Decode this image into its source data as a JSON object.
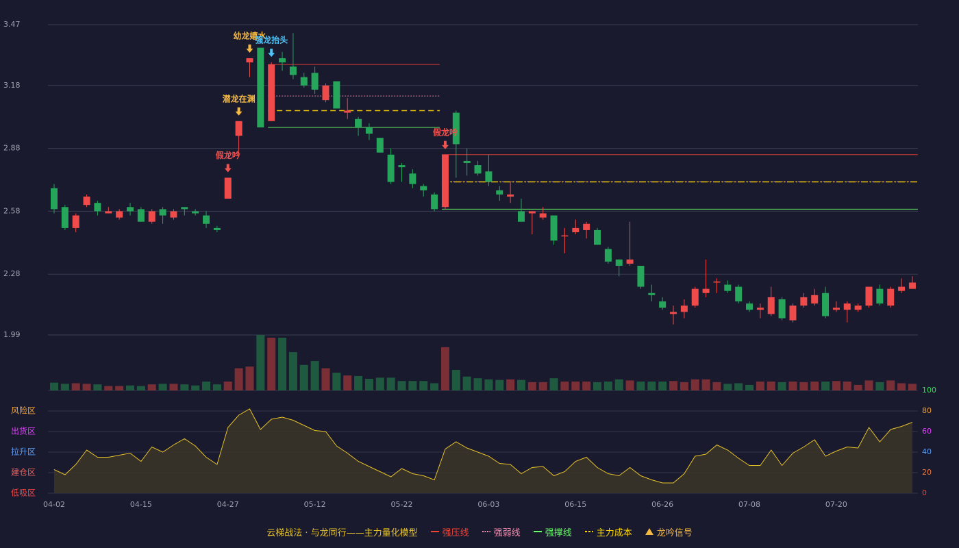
{
  "chart_data": {
    "type": "candlestick",
    "categories": [
      "04-02",
      null,
      null,
      null,
      null,
      null,
      null,
      null,
      "04-15",
      null,
      null,
      null,
      null,
      null,
      null,
      null,
      "04-27",
      null,
      null,
      null,
      null,
      null,
      null,
      null,
      "05-12",
      null,
      null,
      null,
      null,
      null,
      null,
      null,
      "05-22",
      null,
      null,
      null,
      null,
      null,
      null,
      null,
      "06-03",
      null,
      null,
      null,
      null,
      null,
      null,
      null,
      "06-15",
      null,
      null,
      null,
      null,
      null,
      null,
      null,
      "06-26",
      null,
      null,
      null,
      null,
      null,
      null,
      null,
      "07-08",
      null,
      null,
      null,
      null,
      null,
      null,
      null,
      "07-20",
      null,
      null,
      null,
      null,
      null,
      null,
      null
    ],
    "open": [
      2.69,
      2.6,
      2.5,
      2.61,
      2.62,
      2.57,
      2.55,
      2.6,
      2.59,
      2.53,
      2.59,
      2.55,
      2.6,
      2.58,
      2.56,
      2.5,
      2.64,
      2.94,
      3.29,
      3.36,
      3.01,
      3.31,
      3.27,
      3.22,
      3.24,
      3.11,
      3.2,
      3.05,
      3.02,
      2.98,
      2.93,
      2.85,
      2.8,
      2.76,
      2.7,
      2.66,
      2.6,
      3.05,
      2.82,
      2.8,
      2.77,
      2.68,
      2.65,
      2.58,
      2.57,
      2.55,
      2.56,
      2.46,
      2.48,
      2.49,
      2.49,
      2.4,
      2.35,
      2.33,
      2.32,
      2.19,
      2.15,
      2.09,
      2.1,
      2.13,
      2.19,
      2.24,
      2.23,
      2.22,
      2.14,
      2.11,
      2.09,
      2.16,
      2.06,
      2.13,
      2.14,
      2.19,
      2.11,
      2.11,
      2.11,
      2.13,
      2.21,
      2.13,
      2.2,
      2.21
    ],
    "high": [
      2.71,
      2.61,
      2.57,
      2.66,
      2.63,
      2.6,
      2.59,
      2.62,
      2.6,
      2.59,
      2.6,
      2.59,
      2.6,
      2.59,
      2.58,
      2.51,
      2.74,
      3.01,
      3.31,
      3.36,
      3.29,
      3.34,
      3.43,
      3.24,
      3.27,
      3.19,
      3.2,
      3.12,
      3.03,
      3.0,
      2.93,
      2.88,
      2.81,
      2.78,
      2.71,
      2.67,
      2.85,
      3.06,
      2.88,
      2.82,
      2.85,
      2.7,
      2.72,
      2.64,
      2.58,
      2.6,
      2.56,
      2.5,
      2.54,
      2.53,
      2.5,
      2.41,
      2.35,
      2.53,
      2.32,
      2.23,
      2.17,
      2.13,
      2.16,
      2.22,
      2.35,
      2.26,
      2.25,
      2.23,
      2.15,
      2.14,
      2.22,
      2.17,
      2.14,
      2.19,
      2.21,
      2.22,
      2.15,
      2.15,
      2.14,
      2.22,
      2.23,
      2.22,
      2.26,
      2.27
    ],
    "low": [
      2.57,
      2.49,
      2.48,
      2.6,
      2.56,
      2.57,
      2.54,
      2.56,
      2.53,
      2.52,
      2.52,
      2.54,
      2.56,
      2.56,
      2.5,
      2.48,
      2.64,
      2.84,
      3.22,
      2.98,
      3.01,
      3.25,
      3.21,
      3.17,
      3.14,
      3.1,
      3.07,
      3.02,
      2.94,
      2.92,
      2.86,
      2.71,
      2.72,
      2.69,
      2.65,
      2.58,
      2.59,
      2.74,
      2.75,
      2.75,
      2.7,
      2.63,
      2.62,
      2.53,
      2.47,
      2.54,
      2.42,
      2.38,
      2.47,
      2.45,
      2.42,
      2.33,
      2.27,
      2.32,
      2.21,
      2.15,
      2.11,
      2.04,
      2.07,
      2.12,
      2.17,
      2.19,
      2.19,
      2.14,
      2.1,
      2.07,
      2.08,
      2.06,
      2.05,
      2.12,
      2.13,
      2.07,
      2.1,
      2.05,
      2.1,
      2.12,
      2.13,
      2.12,
      2.19,
      2.21
    ],
    "close": [
      2.59,
      2.5,
      2.56,
      2.65,
      2.58,
      2.58,
      2.58,
      2.58,
      2.53,
      2.58,
      2.56,
      2.58,
      2.59,
      2.57,
      2.52,
      2.49,
      2.74,
      3.01,
      3.31,
      2.98,
      3.28,
      3.29,
      3.23,
      3.18,
      3.16,
      3.18,
      3.07,
      3.06,
      2.98,
      2.95,
      2.86,
      2.72,
      2.79,
      2.71,
      2.68,
      2.59,
      2.85,
      2.9,
      2.81,
      2.76,
      2.72,
      2.66,
      2.66,
      2.53,
      2.58,
      2.57,
      2.44,
      2.465,
      2.5,
      2.52,
      2.42,
      2.34,
      2.32,
      2.35,
      2.22,
      2.18,
      2.12,
      2.1,
      2.13,
      2.21,
      2.21,
      2.245,
      2.2,
      2.15,
      2.11,
      2.12,
      2.17,
      2.07,
      2.13,
      2.17,
      2.18,
      2.08,
      2.12,
      2.14,
      2.13,
      2.22,
      2.14,
      2.21,
      2.22,
      2.24
    ],
    "up_color": "#ef4b4b",
    "down_color": "#26a65b",
    "ylim": [
      1.99,
      3.47
    ],
    "yticks": [
      3.47,
      3.18,
      2.88,
      2.58,
      2.28,
      1.99
    ],
    "grid": true,
    "volume": {
      "values": [
        14,
        12,
        13,
        12,
        11,
        8,
        8,
        9,
        8,
        11,
        12,
        12,
        11,
        9,
        16,
        11,
        16,
        40,
        43,
        100,
        95,
        95,
        69,
        46,
        53,
        40,
        32,
        27,
        26,
        21,
        23,
        23,
        17,
        17,
        17,
        13,
        78,
        37,
        25,
        22,
        20,
        19,
        20,
        19,
        15,
        15,
        22,
        16,
        16,
        16,
        15,
        16,
        20,
        18,
        16,
        16,
        16,
        17,
        15,
        20,
        20,
        15,
        12,
        13,
        10,
        16,
        16,
        15,
        16,
        15,
        16,
        16,
        17,
        16,
        10,
        18,
        15,
        18,
        13,
        12
      ],
      "ylim": [
        0,
        100
      ],
      "up_color": "#7a2e36",
      "down_color": "#1f5a40"
    },
    "indicator": {
      "type": "area",
      "values": [
        23,
        18,
        28,
        42,
        35,
        35,
        37,
        39,
        31,
        45,
        40,
        47,
        53,
        46,
        35,
        28,
        64,
        76,
        82,
        62,
        72,
        74,
        71,
        66,
        61,
        60,
        46,
        39,
        31,
        26,
        21,
        16,
        24,
        19,
        17,
        13,
        43,
        50,
        44,
        40,
        36,
        29,
        28,
        19,
        25,
        26,
        17,
        21,
        31,
        35,
        25,
        19,
        17,
        25,
        17,
        13,
        10,
        10,
        19,
        36,
        38,
        47,
        42,
        34,
        27,
        27,
        42,
        27,
        39,
        45,
        52,
        36,
        41,
        45,
        44,
        64,
        50,
        62,
        65,
        69
      ],
      "color": "#e6c229",
      "fill": "#3a3428",
      "ylim": [
        0,
        100
      ],
      "yticks": [
        0,
        20,
        40,
        60,
        80,
        100
      ],
      "ytick_colors": [
        "#f04545",
        "#f07a3c",
        "#5b9bf5",
        "#e040fb",
        "#f0a030",
        "#33dd55"
      ],
      "zones": [
        {
          "label": "风险区",
          "value": 80,
          "color": "#f0a030"
        },
        {
          "label": "出货区",
          "value": 60,
          "color": "#e040fb"
        },
        {
          "label": "拉升区",
          "value": 40,
          "color": "#5b9bf5"
        },
        {
          "label": "建仓区",
          "value": 20,
          "color": "#f06060"
        },
        {
          "label": "低吸区",
          "value": 0,
          "color": "#f04545"
        }
      ]
    },
    "levels": [
      {
        "name": "强压线",
        "from": 20,
        "to": 35,
        "value": 3.28
      },
      {
        "name": "强弱线",
        "from": 20,
        "to": 35,
        "value": 3.13
      },
      {
        "name": "主力成本",
        "from": 20,
        "to": 35,
        "value": 3.06
      },
      {
        "name": "强撑线",
        "from": 20,
        "to": 35,
        "value": 2.98
      },
      {
        "name": "强压线",
        "from": 36,
        "to": 79,
        "value": 2.85
      },
      {
        "name": "强弱线",
        "from": 36,
        "to": 79,
        "value": 2.72
      },
      {
        "name": "主力成本",
        "from": 36,
        "to": 79,
        "value": 2.72
      },
      {
        "name": "强撑线",
        "from": 36,
        "to": 79,
        "value": 2.59
      }
    ],
    "signals": [
      {
        "label": "假龙吟",
        "index": 16,
        "color": "#ef5350"
      },
      {
        "label": "潜龙在渊",
        "index": 17,
        "color": "#f5b942"
      },
      {
        "label": "幼龙嬉水",
        "index": 18,
        "color": "#f5b942"
      },
      {
        "label": "强龙抬头",
        "index": 20,
        "color": "#4fc3f7"
      },
      {
        "label": "假龙吟",
        "index": 36,
        "color": "#ef5350"
      }
    ],
    "legend": {
      "title": "云梯战法 · 与龙同行——主力量化模型",
      "title_color": "#e6c229",
      "items": [
        {
          "name": "强压线",
          "color": "#f44336",
          "style": "solid"
        },
        {
          "name": "强弱线",
          "color": "#f48fb1",
          "style": "dotted"
        },
        {
          "name": "强撑线",
          "color": "#66ff66",
          "style": "solid"
        },
        {
          "name": "主力成本",
          "color": "#ffd700",
          "style": "dashed"
        },
        {
          "name": "龙吟信号",
          "color": "#f5b942",
          "style": "triangle"
        }
      ]
    }
  }
}
